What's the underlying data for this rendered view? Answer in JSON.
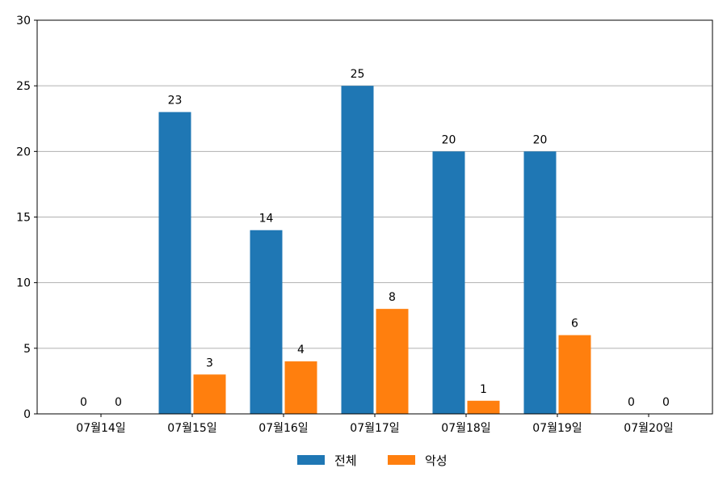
{
  "chart_data": {
    "type": "bar",
    "categories": [
      "07월14일",
      "07월15일",
      "07월16일",
      "07월17일",
      "07월18일",
      "07월19일",
      "07월20일"
    ],
    "series": [
      {
        "name": "전체",
        "values": [
          0,
          23,
          14,
          25,
          20,
          20,
          0
        ],
        "color": "#1f77b4"
      },
      {
        "name": "악성",
        "values": [
          0,
          3,
          4,
          8,
          1,
          6,
          0
        ],
        "color": "#ff7f0e"
      }
    ],
    "title": "",
    "xlabel": "",
    "ylabel": "",
    "ylim": [
      0,
      30
    ],
    "yticks": [
      0,
      5,
      10,
      15,
      20,
      25,
      30
    ],
    "grid": "horizontal",
    "legend_position": "bottom-center",
    "data_labels": true
  }
}
